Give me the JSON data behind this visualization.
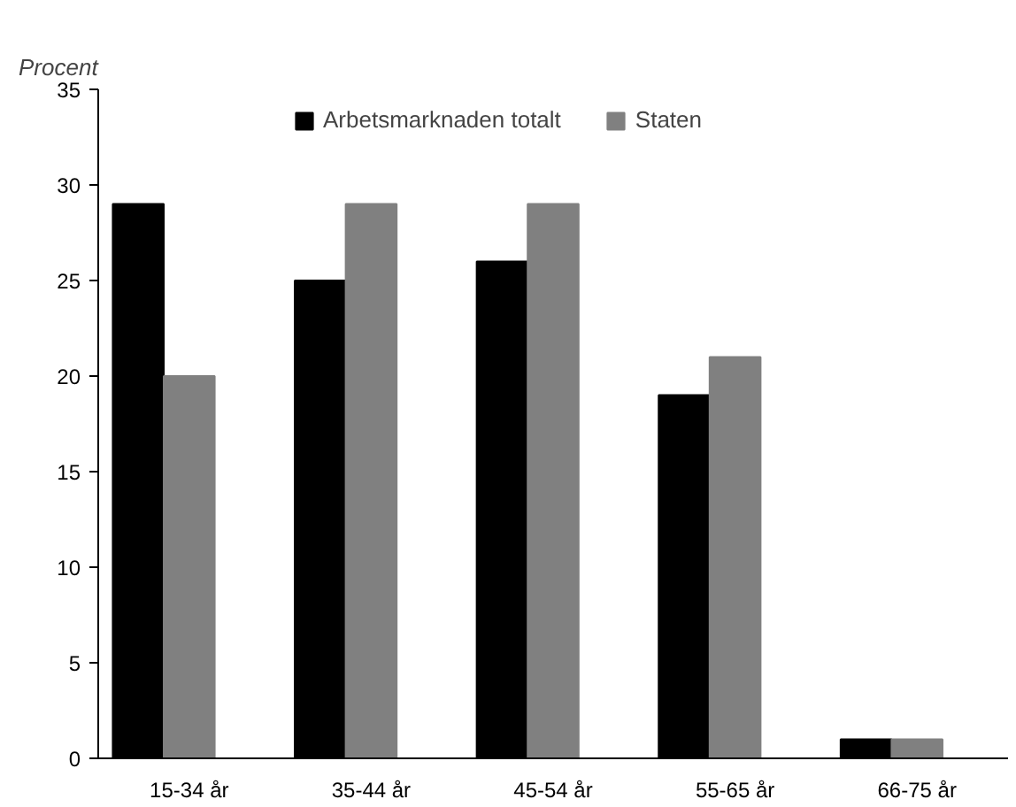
{
  "chart_data": {
    "type": "bar",
    "ylabel": "Procent",
    "categories": [
      "15-34 år",
      "35-44 år",
      "45-54 år",
      "55-65 år",
      "66-75 år"
    ],
    "series": [
      {
        "name": "Arbetsmarknaden totalt",
        "color": "#000000",
        "values": [
          29,
          25,
          26,
          19,
          1
        ]
      },
      {
        "name": "Staten",
        "color": "#808080",
        "values": [
          20,
          29,
          29,
          21,
          1
        ]
      },
      {
        "color": "#c0c0c0",
        "values": [
          null,
          null,
          null,
          null,
          null
        ]
      }
    ],
    "ylim": [
      0,
      35
    ],
    "yticks": [
      0,
      5,
      10,
      15,
      20,
      25,
      30,
      35
    ],
    "grid": false,
    "legend": "top"
  }
}
